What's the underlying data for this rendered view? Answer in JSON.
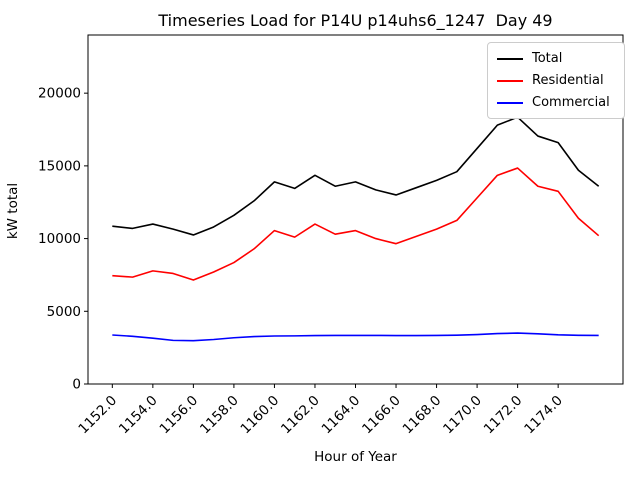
{
  "figure": {
    "title": "Timeseries Load for P14U p14uhs6_1247  Day 49",
    "xlabel": "Hour of Year",
    "ylabel": "kW total"
  },
  "chart_data": {
    "type": "line",
    "title": "Timeseries Load for P14U p14uhs6_1247  Day 49",
    "xlabel": "Hour of Year",
    "ylabel": "kW total",
    "grid": false,
    "legend_position": "upper right",
    "xlim": [
      1150.8,
      1177.2
    ],
    "ylim": [
      0,
      24000
    ],
    "x_ticks": [
      1152,
      1154,
      1156,
      1158,
      1160,
      1162,
      1164,
      1166,
      1168,
      1170,
      1172,
      1174
    ],
    "x_tick_labels": [
      "1152.0",
      "1154.0",
      "1156.0",
      "1158.0",
      "1160.0",
      "1162.0",
      "1164.0",
      "1166.0",
      "1168.0",
      "1170.0",
      "1172.0",
      "1174.0"
    ],
    "y_ticks": [
      0,
      5000,
      10000,
      15000,
      20000
    ],
    "y_tick_labels": [
      "0",
      "5000",
      "10000",
      "15000",
      "20000"
    ],
    "x": [
      1152,
      1153,
      1154,
      1155,
      1156,
      1157,
      1158,
      1159,
      1160,
      1161,
      1162,
      1163,
      1164,
      1165,
      1166,
      1167,
      1168,
      1169,
      1170,
      1171,
      1172,
      1173,
      1174,
      1175,
      1176
    ],
    "series": [
      {
        "name": "Total",
        "color": "#000000",
        "values": [
          10850,
          10700,
          11000,
          10650,
          10250,
          10800,
          11600,
          12600,
          13900,
          13450,
          14350,
          13600,
          13900,
          13350,
          13000,
          13500,
          14000,
          14600,
          16200,
          17800,
          18350,
          17050,
          16600,
          14700,
          13600
        ]
      },
      {
        "name": "Residential",
        "color": "#ff0000",
        "values": [
          7450,
          7350,
          7780,
          7600,
          7150,
          7700,
          8350,
          9300,
          10550,
          10100,
          11000,
          10300,
          10550,
          10000,
          9650,
          10150,
          10650,
          11250,
          12800,
          14350,
          14850,
          13600,
          13250,
          11400,
          10200
        ]
      },
      {
        "name": "Commercial",
        "color": "#0000ff",
        "values": [
          3370,
          3280,
          3150,
          3000,
          2980,
          3060,
          3180,
          3260,
          3300,
          3310,
          3330,
          3340,
          3340,
          3340,
          3330,
          3330,
          3340,
          3360,
          3400,
          3470,
          3500,
          3450,
          3380,
          3350,
          3340
        ]
      }
    ]
  }
}
